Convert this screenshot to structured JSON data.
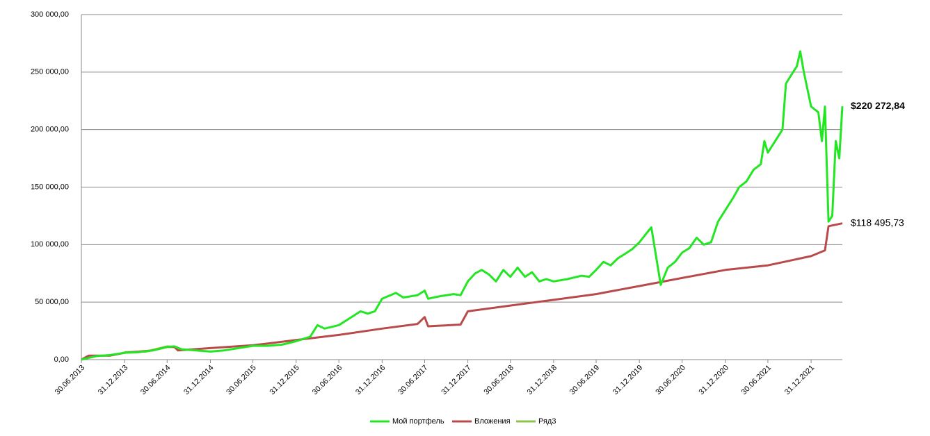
{
  "chart_data": {
    "type": "line",
    "xlim": [
      "30.06.2013",
      "13.05.2022"
    ],
    "xticks": [
      "30.06.2013",
      "31.12.2013",
      "30.06.2014",
      "31.12.2014",
      "30.06.2015",
      "31.12.2015",
      "30.06.2016",
      "31.12.2016",
      "30.06.2017",
      "31.12.2017",
      "30.06.2018",
      "31.12.2018",
      "30.06.2019",
      "31.12.2019",
      "30.06.2020",
      "31.12.2020",
      "30.06.2021",
      "31.12.2021"
    ],
    "ylim": [
      0,
      300000
    ],
    "yticks": [
      {
        "value": 0,
        "label": "0,00"
      },
      {
        "value": 50000,
        "label": "50 000,00"
      },
      {
        "value": 100000,
        "label": "100 000,00"
      },
      {
        "value": 150000,
        "label": "150 000,00"
      },
      {
        "value": 200000,
        "label": "200 000,00"
      },
      {
        "value": 250000,
        "label": "250 000,00"
      },
      {
        "value": 300000,
        "label": "300 000,00"
      }
    ],
    "grid": true,
    "legend": "bottom",
    "series": [
      {
        "name": "Мой портфель",
        "color": "#22e622",
        "x": [
          "30.06.2013",
          "31.08.2013",
          "31.10.2013",
          "31.12.2013",
          "28.02.2014",
          "30.04.2014",
          "30.06.2014",
          "31.07.2014",
          "31.08.2014",
          "31.10.2014",
          "31.12.2014",
          "28.02.2015",
          "30.04.2015",
          "30.06.2015",
          "31.08.2015",
          "31.10.2015",
          "31.12.2015",
          "29.02.2016",
          "31.03.2016",
          "30.04.2016",
          "30.06.2016",
          "31.08.2016",
          "30.09.2016",
          "31.10.2016",
          "30.11.2016",
          "31.12.2016",
          "28.02.2017",
          "31.03.2017",
          "30.04.2017",
          "31.05.2017",
          "30.06.2017",
          "15.07.2017",
          "31.08.2017",
          "31.10.2017",
          "30.11.2017",
          "31.12.2017",
          "31.01.2018",
          "28.02.2018",
          "31.03.2018",
          "30.04.2018",
          "31.05.2018",
          "30.06.2018",
          "31.07.2018",
          "31.08.2018",
          "30.09.2018",
          "31.10.2018",
          "30.11.2018",
          "31.12.2018",
          "28.02.2019",
          "30.04.2019",
          "31.05.2019",
          "30.06.2019",
          "31.07.2019",
          "31.08.2019",
          "30.09.2019",
          "31.10.2019",
          "30.11.2019",
          "31.12.2019",
          "31.01.2020",
          "20.02.2020",
          "31.03.2020",
          "30.04.2020",
          "31.05.2020",
          "30.06.2020",
          "31.07.2020",
          "31.08.2020",
          "30.09.2020",
          "31.10.2020",
          "30.11.2020",
          "31.12.2020",
          "31.01.2021",
          "28.02.2021",
          "31.03.2021",
          "30.04.2021",
          "31.05.2021",
          "15.06.2021",
          "30.06.2021",
          "31.07.2021",
          "31.08.2021",
          "15.09.2021",
          "30.09.2021",
          "31.10.2021",
          "15.11.2021",
          "30.11.2021",
          "31.12.2021",
          "31.01.2022",
          "15.02.2022",
          "28.02.2022",
          "15.03.2022",
          "31.03.2022",
          "15.04.2022",
          "30.04.2022",
          "13.05.2022"
        ],
        "values": [
          0,
          3000,
          4000,
          6000,
          6500,
          8000,
          11000,
          11500,
          9000,
          8000,
          7000,
          8000,
          10000,
          12000,
          12000,
          13000,
          16000,
          20000,
          30000,
          27000,
          30000,
          38000,
          42000,
          40000,
          42000,
          53000,
          58000,
          54000,
          55000,
          56000,
          60000,
          53000,
          55000,
          57000,
          56000,
          68000,
          75000,
          78000,
          74000,
          68000,
          78000,
          72000,
          80000,
          72000,
          76000,
          68000,
          70000,
          68000,
          70000,
          73000,
          72000,
          78000,
          85000,
          82000,
          88000,
          92000,
          96000,
          102000,
          110000,
          115000,
          65000,
          80000,
          85000,
          93000,
          97000,
          106000,
          100000,
          102000,
          120000,
          130000,
          140000,
          150000,
          155000,
          165000,
          170000,
          190000,
          180000,
          190000,
          200000,
          240000,
          245000,
          255000,
          268000,
          250000,
          220000,
          215000,
          190000,
          220000,
          120000,
          125000,
          190000,
          175000,
          220272.84
        ]
      },
      {
        "name": "Вложения",
        "color": "#b84a4a",
        "x": [
          "30.06.2013",
          "31.07.2013",
          "31.10.2013",
          "31.12.2013",
          "30.04.2014",
          "30.06.2014",
          "31.07.2014",
          "15.08.2014",
          "31.12.2014",
          "30.06.2015",
          "31.12.2015",
          "30.06.2016",
          "31.12.2016",
          "31.05.2017",
          "30.06.2017",
          "15.07.2017",
          "30.11.2017",
          "31.12.2017",
          "30.06.2018",
          "31.12.2018",
          "30.06.2019",
          "31.12.2019",
          "30.06.2020",
          "31.12.2020",
          "30.06.2021",
          "31.12.2021",
          "28.02.2022",
          "15.03.2022",
          "13.05.2022"
        ],
        "values": [
          0,
          3500,
          3500,
          6000,
          8000,
          11000,
          11000,
          8000,
          10000,
          12500,
          17000,
          21500,
          27000,
          31000,
          37000,
          29000,
          30500,
          42000,
          47000,
          52000,
          57000,
          64000,
          71000,
          78000,
          82000,
          90000,
          95000,
          116000,
          118495.73
        ]
      },
      {
        "name": "Ряд3",
        "color": "#8cc34a",
        "x": [
          "31.12.2013",
          "31.03.2014",
          "30.06.2014",
          "31.07.2014"
        ],
        "values": [
          6500,
          7000,
          11500,
          11000
        ]
      }
    ],
    "annotations": [
      {
        "text": "$220 272,84",
        "y": 220272.84,
        "bold": true
      },
      {
        "text": "$118 495,73",
        "y": 118495.73,
        "bold": false
      }
    ]
  }
}
